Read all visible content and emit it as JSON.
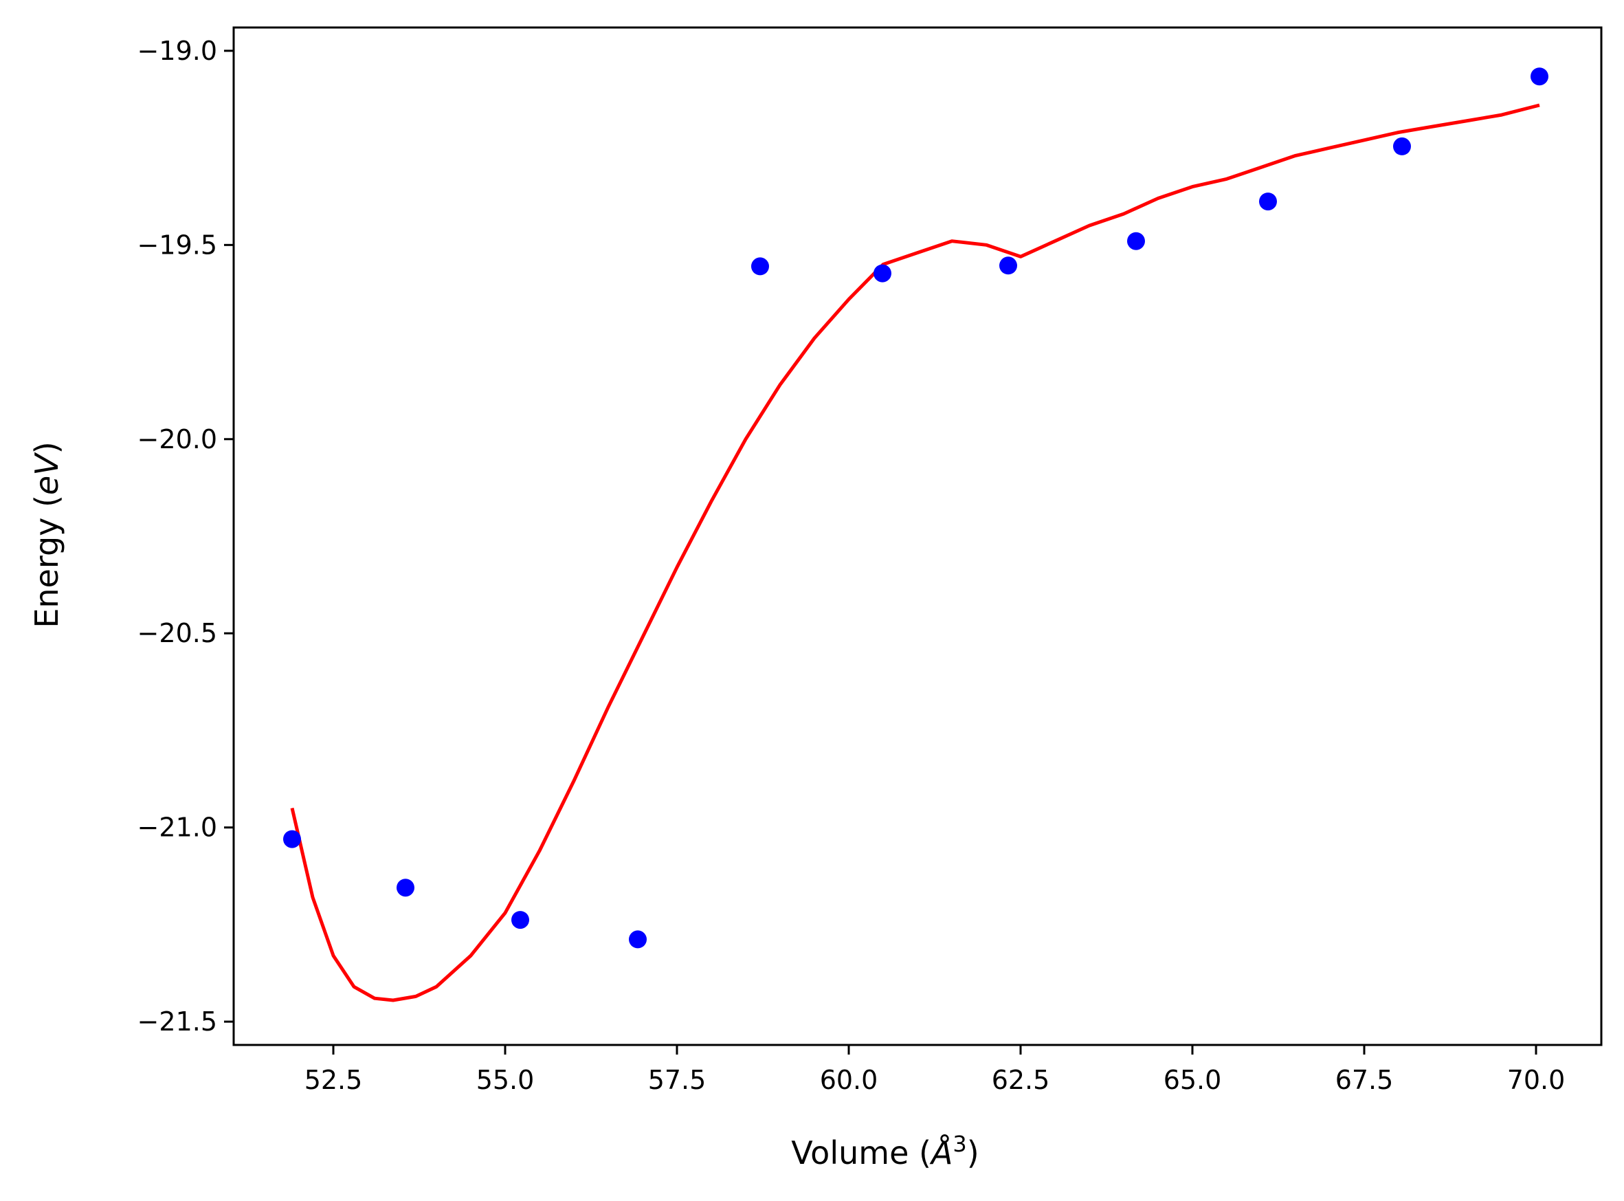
{
  "chart_data": {
    "type": "scatter",
    "title": "",
    "xlabel": {
      "text": "Volume (",
      "symbol": "Å",
      "sup": "3",
      "close": ")"
    },
    "ylabel": {
      "text": "Energy (",
      "italic": "eV",
      "close": ")"
    },
    "xlim": [
      51.05,
      70.95
    ],
    "ylim": [
      -21.56,
      -18.94
    ],
    "xticks": [
      52.5,
      55.0,
      57.5,
      60.0,
      62.5,
      65.0,
      67.5,
      70.0
    ],
    "xtick_labels": [
      "52.5",
      "55.0",
      "57.5",
      "60.0",
      "62.5",
      "65.0",
      "67.5",
      "70.0"
    ],
    "yticks": [
      -19.0,
      -19.5,
      -20.0,
      -20.5,
      -21.0,
      -21.5
    ],
    "ytick_labels": [
      "−19.0",
      "−19.5",
      "−20.0",
      "−20.5",
      "−21.0",
      "−21.5"
    ],
    "grid": false,
    "series": [
      {
        "kind": "points",
        "color": "#0000ff",
        "x": [
          51.9,
          53.55,
          55.22,
          56.93,
          58.71,
          60.49,
          62.32,
          64.18,
          66.1,
          68.05,
          70.05
        ],
        "y": [
          -21.03,
          -21.155,
          -21.238,
          -21.288,
          -19.555,
          -19.573,
          -19.553,
          -19.49,
          -19.388,
          -19.246,
          -19.066
        ]
      },
      {
        "kind": "line",
        "color": "#ff0000",
        "x": [
          51.9,
          52.2,
          52.5,
          52.8,
          53.1,
          53.37,
          53.7,
          54.0,
          54.5,
          55.0,
          55.5,
          56.0,
          56.5,
          57.0,
          57.5,
          58.0,
          58.5,
          59.0,
          59.5,
          60.0,
          60.5,
          61.0,
          61.5,
          62.0,
          62.5,
          63.0,
          63.5,
          64.0,
          64.5,
          65.0,
          65.5,
          66.0,
          66.5,
          67.0,
          67.5,
          68.0,
          68.5,
          69.0,
          69.5,
          70.05
        ],
        "y": [
          -20.95,
          -21.18,
          -21.33,
          -21.41,
          -21.44,
          -21.445,
          -21.435,
          -21.41,
          -21.33,
          -21.22,
          -21.06,
          -20.88,
          -20.69,
          -20.51,
          -20.33,
          -20.16,
          -20.0,
          -19.86,
          -19.74,
          -19.64,
          -19.55,
          -19.52,
          -19.49,
          -19.5,
          -19.53,
          -19.49,
          -19.45,
          -19.42,
          -19.38,
          -19.35,
          -19.33,
          -19.3,
          -19.27,
          -19.25,
          -19.23,
          -19.21,
          -19.195,
          -19.18,
          -19.165,
          -19.14
        ]
      }
    ]
  }
}
